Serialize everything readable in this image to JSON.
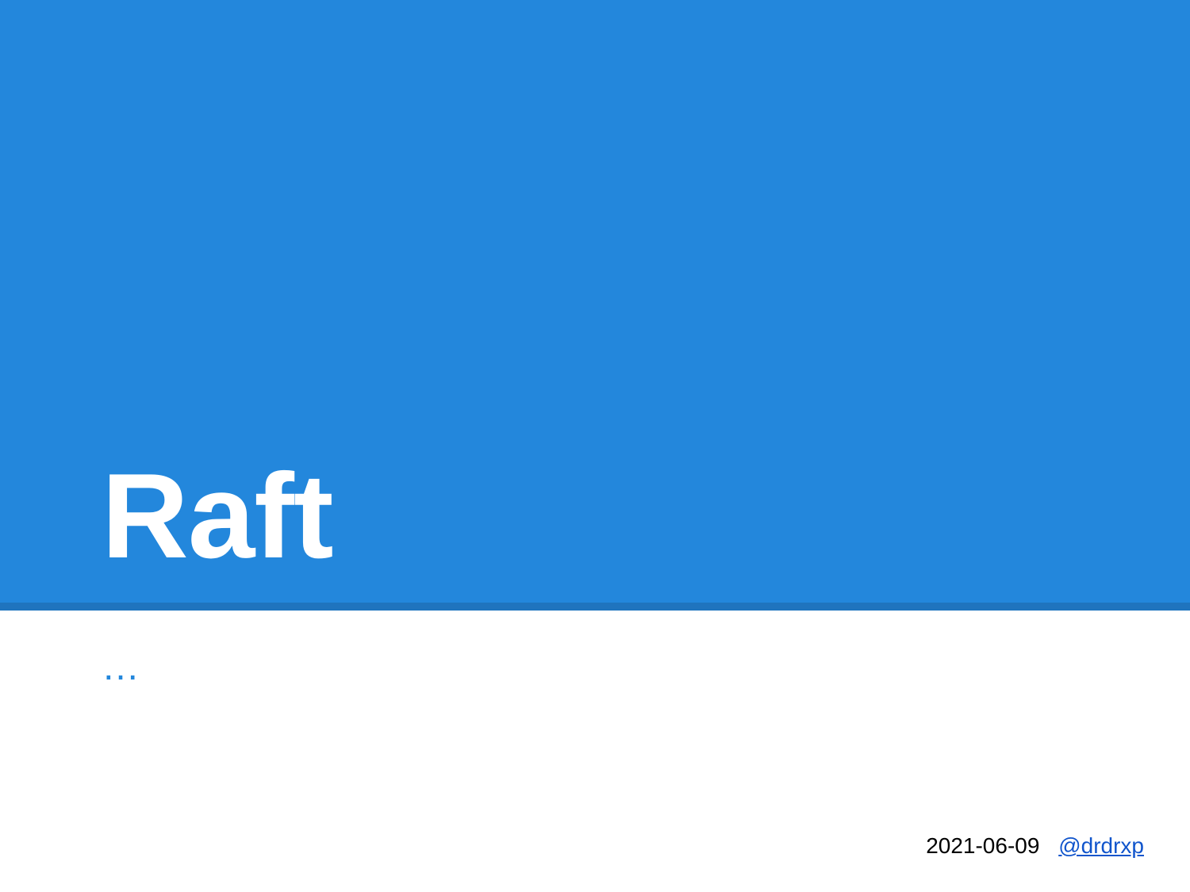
{
  "slide": {
    "title": "Raft",
    "subtitle": "…",
    "footer": {
      "date": "2021-06-09",
      "author_handle": "@drdrxp"
    }
  },
  "colors": {
    "accent": "#2387dc",
    "accent_dark": "#1f74be",
    "link": "#1155cc",
    "title_text": "#ffffff",
    "body_text": "#000000",
    "background": "#ffffff"
  }
}
